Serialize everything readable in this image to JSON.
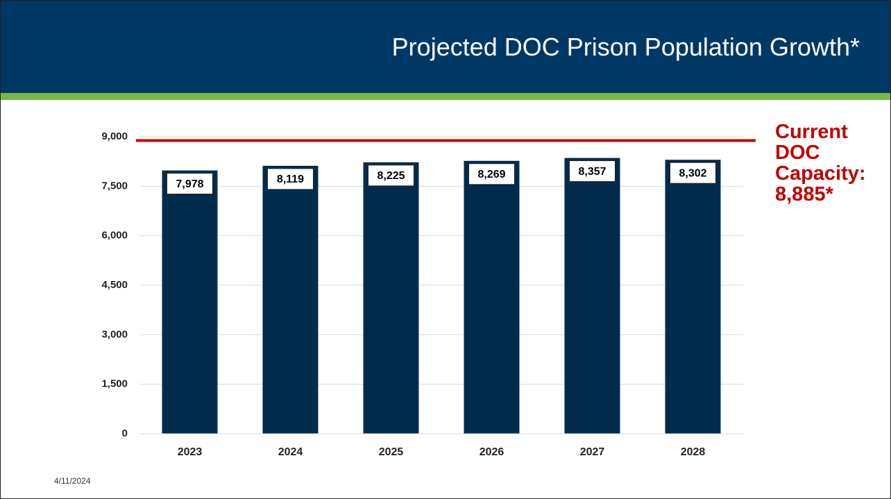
{
  "title": "Projected DOC Prison Population Growth*",
  "date": "4/11/2024",
  "chart_data": {
    "type": "bar",
    "categories": [
      "2023",
      "2024",
      "2025",
      "2026",
      "2027",
      "2028"
    ],
    "values": [
      7978,
      8119,
      8225,
      8269,
      8357,
      8302
    ],
    "value_labels": [
      "7,978",
      "8,119",
      "8,225",
      "8,269",
      "8,357",
      "8,302"
    ],
    "color": "#002b4d",
    "ylim": [
      0,
      9000
    ],
    "yticks": [
      0,
      {
        "value": 1500,
        "label": "1,500"
      },
      {
        "value": 3000,
        "label": "3,000"
      },
      {
        "value": 4500,
        "label": "4,500"
      },
      {
        "value": 6000,
        "label": "6,000"
      },
      {
        "value": 7500,
        "label": "7,500"
      },
      {
        "value": 9000,
        "label": "9,000"
      }
    ],
    "grid": true,
    "reference_line": {
      "value": 8885,
      "color": "#c00000",
      "label": "Current DOC Capacity: 8,885*"
    }
  }
}
